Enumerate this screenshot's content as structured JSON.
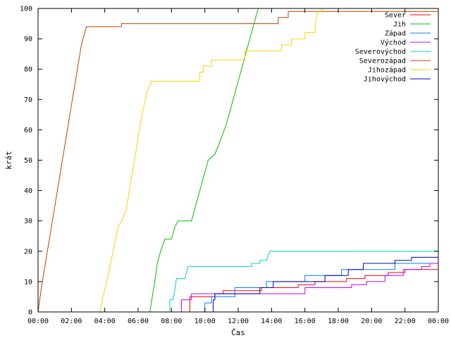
{
  "chart_data": {
    "type": "line",
    "title": "",
    "xlabel": "Čas",
    "ylabel": "krát",
    "xlim": [
      0,
      24
    ],
    "ylim": [
      0,
      100
    ],
    "x_ticks": [
      0,
      2,
      4,
      6,
      8,
      10,
      12,
      14,
      16,
      18,
      20,
      22,
      24
    ],
    "x_tick_labels": [
      "00:00",
      "02:00",
      "04:00",
      "06:00",
      "08:00",
      "10:00",
      "12:00",
      "14:00",
      "16:00",
      "18:00",
      "20:00",
      "22:00",
      "00:00"
    ],
    "y_ticks": [
      0,
      10,
      20,
      30,
      40,
      50,
      60,
      70,
      80,
      90,
      100
    ],
    "legend_position": "top-right",
    "grid": false,
    "series": [
      {
        "name": "Sever",
        "color": "#ff0000",
        "points": [
          [
            0,
            0
          ],
          [
            9.1,
            0
          ],
          [
            9.1,
            5
          ],
          [
            10.6,
            5
          ],
          [
            10.6,
            6
          ],
          [
            11.1,
            6
          ],
          [
            11.1,
            7
          ],
          [
            13.4,
            7
          ],
          [
            13.4,
            8
          ],
          [
            15.6,
            8
          ],
          [
            15.6,
            9
          ],
          [
            16.6,
            9
          ],
          [
            16.6,
            10
          ],
          [
            18.5,
            10
          ],
          [
            18.5,
            11
          ],
          [
            19.6,
            11
          ],
          [
            19.6,
            12
          ],
          [
            21.0,
            12
          ],
          [
            21.0,
            13
          ],
          [
            22.0,
            13
          ],
          [
            22.0,
            14
          ],
          [
            24,
            14
          ]
        ]
      },
      {
        "name": "Jih",
        "color": "#00c000",
        "points": [
          [
            0,
            0
          ],
          [
            6.7,
            0
          ],
          [
            6.85,
            5
          ],
          [
            7.0,
            10
          ],
          [
            7.15,
            16
          ],
          [
            7.35,
            20
          ],
          [
            7.6,
            24
          ],
          [
            8.0,
            24
          ],
          [
            8.2,
            28
          ],
          [
            8.4,
            30
          ],
          [
            9.2,
            30
          ],
          [
            9.4,
            34
          ],
          [
            9.6,
            38
          ],
          [
            9.8,
            42
          ],
          [
            10.0,
            46
          ],
          [
            10.2,
            50
          ],
          [
            10.6,
            52
          ],
          [
            10.9,
            56
          ],
          [
            11.3,
            62
          ],
          [
            11.7,
            70
          ],
          [
            12.1,
            78
          ],
          [
            12.5,
            86
          ],
          [
            12.9,
            94
          ],
          [
            13.2,
            100
          ]
        ]
      },
      {
        "name": "Západ",
        "color": "#0080ff",
        "points": [
          [
            0,
            0
          ],
          [
            10.0,
            0
          ],
          [
            10.0,
            3
          ],
          [
            10.4,
            3
          ],
          [
            10.4,
            5
          ],
          [
            11.8,
            5
          ],
          [
            11.8,
            8
          ],
          [
            13.7,
            8
          ],
          [
            13.7,
            10
          ],
          [
            16.0,
            10
          ],
          [
            16.0,
            12
          ],
          [
            18.2,
            12
          ],
          [
            18.2,
            14
          ],
          [
            21.4,
            14
          ],
          [
            21.4,
            16
          ],
          [
            24,
            16
          ]
        ]
      },
      {
        "name": "Východ",
        "color": "#c000ff",
        "points": [
          [
            0,
            0
          ],
          [
            8.6,
            0
          ],
          [
            8.6,
            4
          ],
          [
            9.2,
            4
          ],
          [
            9.2,
            6
          ],
          [
            16.0,
            6
          ],
          [
            16.0,
            8
          ],
          [
            18.8,
            8
          ],
          [
            18.8,
            9
          ],
          [
            19.7,
            9
          ],
          [
            19.7,
            10
          ],
          [
            20.8,
            10
          ],
          [
            20.8,
            12
          ],
          [
            21.9,
            12
          ],
          [
            21.9,
            14
          ],
          [
            23.0,
            14
          ],
          [
            23.0,
            15
          ],
          [
            23.5,
            15
          ],
          [
            23.5,
            16
          ],
          [
            24,
            16
          ]
        ]
      },
      {
        "name": "Severovýchod",
        "color": "#00d0d0",
        "points": [
          [
            0,
            0
          ],
          [
            7.9,
            0
          ],
          [
            7.9,
            4
          ],
          [
            8.1,
            4
          ],
          [
            8.3,
            11
          ],
          [
            8.8,
            11
          ],
          [
            9.0,
            15
          ],
          [
            12.8,
            15
          ],
          [
            12.8,
            16
          ],
          [
            13.3,
            16
          ],
          [
            13.3,
            17
          ],
          [
            13.7,
            17
          ],
          [
            13.9,
            20
          ],
          [
            24,
            20
          ]
        ]
      },
      {
        "name": "Severozápad",
        "color": "#c04000",
        "points": [
          [
            0,
            0
          ],
          [
            0.2,
            8
          ],
          [
            0.5,
            18
          ],
          [
            0.8,
            28
          ],
          [
            1.1,
            38
          ],
          [
            1.4,
            48
          ],
          [
            1.7,
            58
          ],
          [
            2.0,
            68
          ],
          [
            2.3,
            78
          ],
          [
            2.6,
            88
          ],
          [
            2.9,
            94
          ],
          [
            3.9,
            94
          ],
          [
            5.0,
            94
          ],
          [
            5.0,
            95
          ],
          [
            14.4,
            95
          ],
          [
            14.4,
            97
          ],
          [
            15.0,
            97
          ],
          [
            15.0,
            99
          ],
          [
            24,
            99
          ]
        ]
      },
      {
        "name": "Jihozápad",
        "color": "#ffd000",
        "points": [
          [
            0,
            0
          ],
          [
            3.7,
            0
          ],
          [
            3.9,
            5
          ],
          [
            4.2,
            12
          ],
          [
            4.5,
            20
          ],
          [
            4.8,
            28
          ],
          [
            5.1,
            31
          ],
          [
            5.3,
            34
          ],
          [
            5.6,
            44
          ],
          [
            5.9,
            54
          ],
          [
            6.2,
            64
          ],
          [
            6.5,
            72
          ],
          [
            6.8,
            76
          ],
          [
            9.7,
            76
          ],
          [
            9.7,
            79
          ],
          [
            9.9,
            79
          ],
          [
            9.9,
            81
          ],
          [
            10.4,
            81
          ],
          [
            10.4,
            83
          ],
          [
            11.3,
            83
          ],
          [
            12.4,
            83
          ],
          [
            12.4,
            86
          ],
          [
            14.6,
            86
          ],
          [
            14.6,
            88
          ],
          [
            15.2,
            88
          ],
          [
            15.2,
            90
          ],
          [
            16.0,
            90
          ],
          [
            16.0,
            92
          ],
          [
            16.6,
            92
          ],
          [
            16.7,
            98
          ],
          [
            17.1,
            100
          ]
        ]
      },
      {
        "name": "Jihovýchod",
        "color": "#0000c0",
        "points": [
          [
            0,
            0
          ],
          [
            10.5,
            0
          ],
          [
            10.5,
            4
          ],
          [
            10.6,
            4
          ],
          [
            10.6,
            6
          ],
          [
            13.3,
            6
          ],
          [
            13.3,
            8
          ],
          [
            14.1,
            8
          ],
          [
            14.1,
            10
          ],
          [
            17.2,
            10
          ],
          [
            17.2,
            12
          ],
          [
            18.6,
            12
          ],
          [
            18.6,
            14
          ],
          [
            19.5,
            14
          ],
          [
            19.5,
            16
          ],
          [
            21.4,
            16
          ],
          [
            21.4,
            17
          ],
          [
            22.4,
            17
          ],
          [
            22.4,
            18
          ],
          [
            24,
            18
          ]
        ]
      }
    ]
  }
}
